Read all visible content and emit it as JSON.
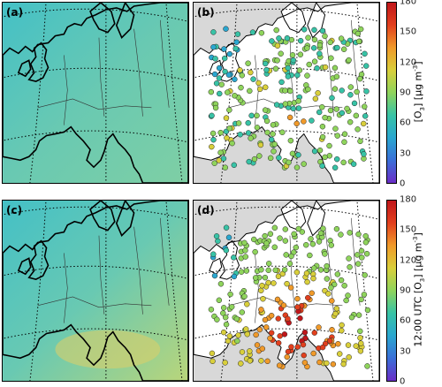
{
  "panels": [
    {
      "id": "pa",
      "label": "(a)",
      "type": "field"
    },
    {
      "id": "pb",
      "label": "(b)",
      "type": "stations"
    },
    {
      "id": "pc",
      "label": "(c)",
      "type": "field"
    },
    {
      "id": "pd",
      "label": "(d)",
      "type": "stations"
    }
  ],
  "colorbar_top": {
    "label": "[O3] [µg m-3]",
    "label_parts": [
      "[O",
      "3",
      "] [µg m",
      "-3",
      "]"
    ],
    "ticks": [
      0,
      30,
      60,
      90,
      120,
      150,
      180
    ],
    "range": [
      0,
      180
    ]
  },
  "colorbar_bottom": {
    "label": "12:00 UTC [O3] [µg m-3]",
    "label_parts": [
      "12:00 UTC [O",
      "3",
      "] [µg m",
      "-3",
      "]"
    ],
    "ticks": [
      0,
      30,
      60,
      90,
      120,
      150,
      180
    ],
    "range": [
      0,
      180
    ]
  },
  "colors": {
    "land_out": "#d8d8d8",
    "land_in": "#ffffff",
    "field_base": "#62c7b8",
    "field_sea": "#5fc5bd",
    "coast": "#000000",
    "grid": "#000000"
  },
  "colormap": [
    "#6a2dc7",
    "#3a6fd8",
    "#2aa7d0",
    "#38c3a6",
    "#8fd45c",
    "#d9cf3b",
    "#f09a2a",
    "#e2401e",
    "#c0161a"
  ]
}
